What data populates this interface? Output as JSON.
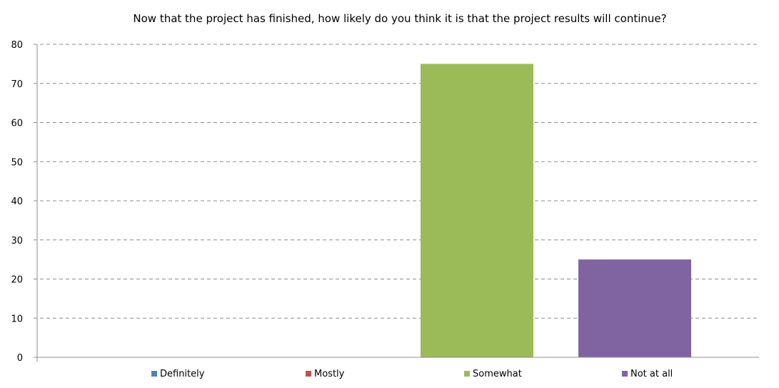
{
  "chart_data": {
    "type": "bar",
    "title": "Now that the project has finished, how likely do you think it is that the project results will continue?",
    "xlabel": "",
    "ylabel": "",
    "ylim": [
      0,
      80
    ],
    "yticks": [
      "0",
      "10",
      "20",
      "30",
      "40",
      "50",
      "60",
      "70",
      "80"
    ],
    "grid": true,
    "legend_position": "bottom",
    "series": [
      {
        "name": "Definitely",
        "value": 0,
        "color": "#4f81bd"
      },
      {
        "name": "Mostly",
        "value": 0,
        "color": "#c0504d"
      },
      {
        "name": "Somewhat",
        "value": 75,
        "color": "#9bbb59"
      },
      {
        "name": "Not at all",
        "value": 25,
        "color": "#8064a2"
      }
    ]
  }
}
